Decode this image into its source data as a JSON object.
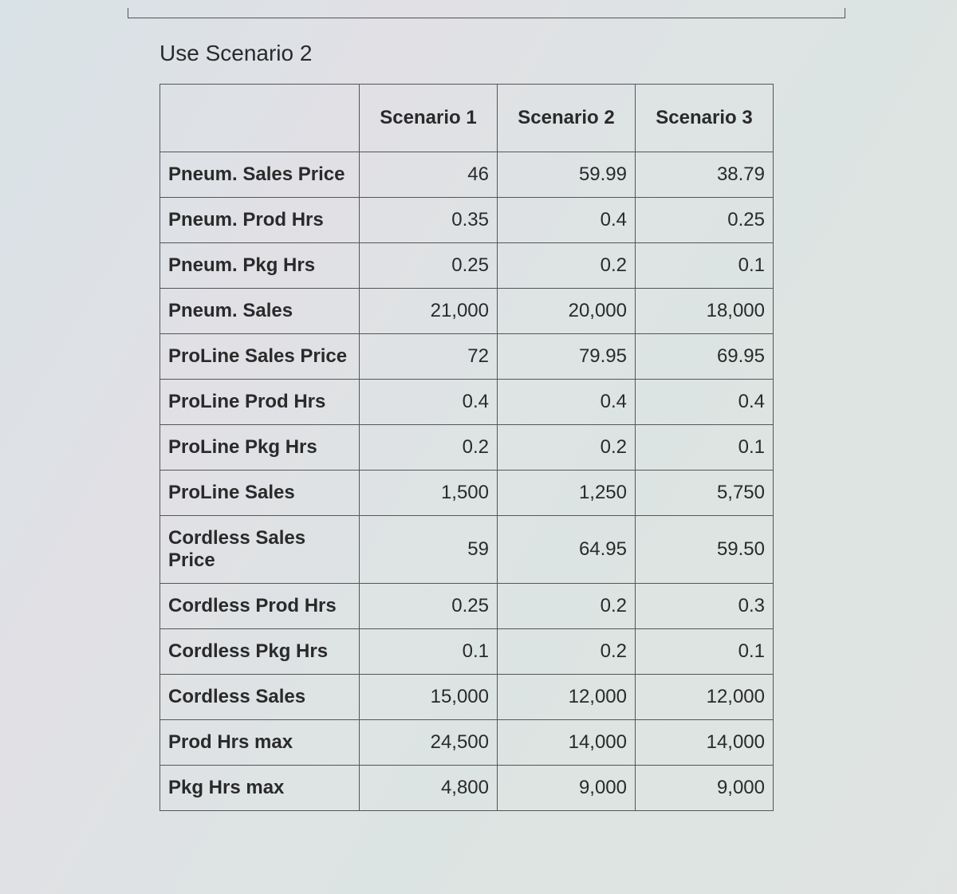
{
  "heading": "Use Scenario 2",
  "table": {
    "columns": [
      "Scenario 1",
      "Scenario 2",
      "Scenario 3"
    ],
    "col_width_label": 250,
    "col_width_val": 173,
    "border_color": "#555555",
    "text_color": "#2a2a2a",
    "font_size": 24,
    "header_font_size": 24,
    "rows": [
      {
        "label": "Pneum. Sales Price",
        "values": [
          "46",
          "59.99",
          "38.79"
        ]
      },
      {
        "label": "Pneum. Prod Hrs",
        "values": [
          "0.35",
          "0.4",
          "0.25"
        ]
      },
      {
        "label": "Pneum. Pkg Hrs",
        "values": [
          "0.25",
          "0.2",
          "0.1"
        ]
      },
      {
        "label": "Pneum. Sales",
        "values": [
          "21,000",
          "20,000",
          "18,000"
        ]
      },
      {
        "label": "ProLine Sales Price",
        "values": [
          "72",
          "79.95",
          "69.95"
        ]
      },
      {
        "label": "ProLine Prod Hrs",
        "values": [
          "0.4",
          "0.4",
          "0.4"
        ]
      },
      {
        "label": "ProLine Pkg Hrs",
        "values": [
          "0.2",
          "0.2",
          "0.1"
        ]
      },
      {
        "label": "ProLine Sales",
        "values": [
          "1,500",
          "1,250",
          "5,750"
        ]
      },
      {
        "label": "Cordless Sales Price",
        "values": [
          "59",
          "64.95",
          "59.50"
        ]
      },
      {
        "label": "Cordless Prod Hrs",
        "values": [
          "0.25",
          "0.2",
          "0.3"
        ]
      },
      {
        "label": "Cordless Pkg Hrs",
        "values": [
          "0.1",
          "0.2",
          "0.1"
        ]
      },
      {
        "label": "Cordless Sales",
        "values": [
          "15,000",
          "12,000",
          "12,000"
        ]
      },
      {
        "label": "Prod Hrs max",
        "values": [
          "24,500",
          "14,000",
          "14,000"
        ]
      },
      {
        "label": "Pkg Hrs max",
        "values": [
          "4,800",
          "9,000",
          "9,000"
        ]
      }
    ]
  },
  "colors": {
    "page_bg": "#d8dde0",
    "table_bg": "#dfe3e5"
  }
}
